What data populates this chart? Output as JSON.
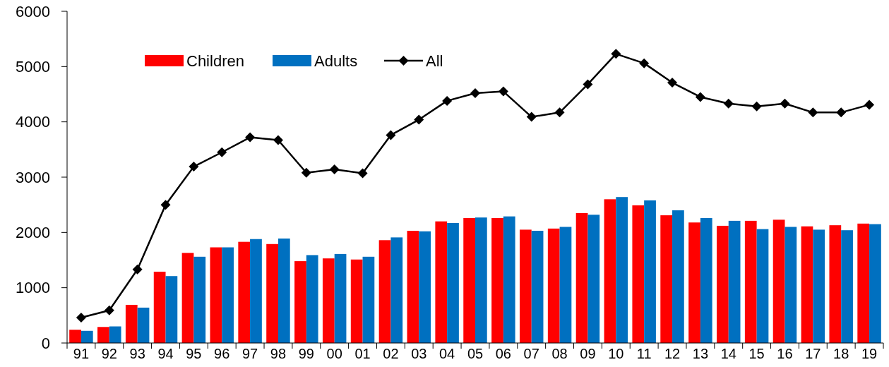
{
  "chart_data": {
    "type": "bar",
    "categories": [
      "91",
      "92",
      "93",
      "94",
      "95",
      "96",
      "97",
      "98",
      "99",
      "00",
      "01",
      "02",
      "03",
      "04",
      "05",
      "06",
      "07",
      "08",
      "09",
      "10",
      "11",
      "12",
      "13",
      "14",
      "15",
      "16",
      "17",
      "18",
      "19"
    ],
    "series": [
      {
        "name": "Children",
        "color": "#ff0000",
        "values": [
          240,
          290,
          690,
          1290,
          1630,
          1730,
          1830,
          1790,
          1480,
          1530,
          1510,
          1860,
          2030,
          2200,
          2260,
          2260,
          2050,
          2070,
          2350,
          2600,
          2490,
          2310,
          2180,
          2120,
          2210,
          2230,
          2110,
          2130,
          2160
        ]
      },
      {
        "name": "Adults",
        "color": "#0070c0",
        "values": [
          220,
          300,
          640,
          1210,
          1560,
          1730,
          1880,
          1890,
          1590,
          1610,
          1560,
          1910,
          2020,
          2170,
          2270,
          2290,
          2030,
          2100,
          2320,
          2640,
          2580,
          2400,
          2260,
          2210,
          2060,
          2100,
          2050,
          2040,
          2150
        ]
      },
      {
        "name": "All",
        "type": "line",
        "color": "#000000",
        "marker": "diamond",
        "values": [
          460,
          590,
          1330,
          2500,
          3190,
          3450,
          3720,
          3670,
          3080,
          3140,
          3070,
          3760,
          4040,
          4380,
          4520,
          4550,
          4090,
          4170,
          4680,
          5230,
          5060,
          4710,
          4450,
          4330,
          4280,
          4330,
          4170,
          4170,
          4310
        ]
      }
    ],
    "ylim": [
      0,
      6000
    ],
    "yticks": [
      0,
      1000,
      2000,
      3000,
      4000,
      5000,
      6000
    ],
    "grid": false,
    "legend": "top left"
  }
}
